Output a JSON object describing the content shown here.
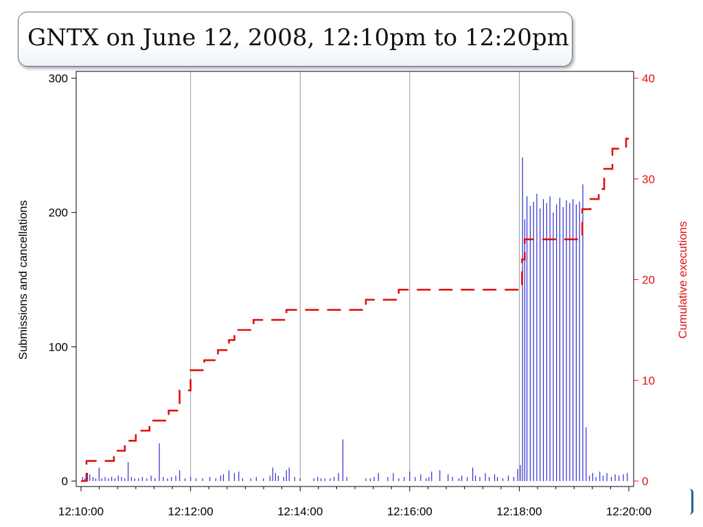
{
  "slide": {
    "title": "GNTX on June 12, 2008, 12:10pm to 12:20pm"
  },
  "colors": {
    "bars": "#2b2bcf",
    "cumulative": "#e01010",
    "grid": "#9a9a9a",
    "axis": "#000000"
  },
  "chart_data": {
    "type": "bar",
    "title": "",
    "x_axis": {
      "range": [
        "12:10:00",
        "12:20:00"
      ],
      "range_minutes": [
        0,
        10
      ],
      "tick_labels": [
        "12:10:00",
        "12:12:00",
        "12:14:00",
        "12:16:00",
        "12:18:00",
        "12:20:00"
      ],
      "tick_minutes": [
        0,
        2,
        4,
        6,
        8,
        10
      ],
      "grid": "vertical lines at labeled ticks"
    },
    "left_axis": {
      "label": "Submissions and cancellations",
      "range": [
        0,
        300
      ],
      "ticks": [
        "0",
        "100",
        "200",
        "300"
      ]
    },
    "right_axis": {
      "label": "Cumulative executions",
      "range": [
        0,
        40
      ],
      "ticks": [
        "0",
        "10",
        "20",
        "30",
        "40"
      ],
      "color": "#e01010"
    },
    "series": [
      {
        "type": "bar",
        "axis": "left",
        "note_minutes": "x in minutes after 12:10:00",
        "points": [
          [
            0.03,
            3
          ],
          [
            0.07,
            2
          ],
          [
            0.12,
            6
          ],
          [
            0.16,
            5
          ],
          [
            0.22,
            3
          ],
          [
            0.27,
            2
          ],
          [
            0.33,
            10
          ],
          [
            0.38,
            2
          ],
          [
            0.44,
            3
          ],
          [
            0.5,
            2
          ],
          [
            0.56,
            3
          ],
          [
            0.62,
            2
          ],
          [
            0.68,
            4
          ],
          [
            0.74,
            3
          ],
          [
            0.8,
            2
          ],
          [
            0.86,
            14
          ],
          [
            0.92,
            3
          ],
          [
            0.98,
            2
          ],
          [
            1.05,
            2
          ],
          [
            1.12,
            3
          ],
          [
            1.2,
            2
          ],
          [
            1.28,
            4
          ],
          [
            1.35,
            2
          ],
          [
            1.43,
            28
          ],
          [
            1.5,
            3
          ],
          [
            1.58,
            2
          ],
          [
            1.65,
            3
          ],
          [
            1.73,
            4
          ],
          [
            1.8,
            8
          ],
          [
            1.9,
            2
          ],
          [
            2.0,
            3
          ],
          [
            2.1,
            2
          ],
          [
            2.22,
            2
          ],
          [
            2.35,
            3
          ],
          [
            2.46,
            2
          ],
          [
            2.55,
            4
          ],
          [
            2.6,
            5
          ],
          [
            2.7,
            8
          ],
          [
            2.8,
            6
          ],
          [
            2.88,
            7
          ],
          [
            2.95,
            2
          ],
          [
            3.1,
            2
          ],
          [
            3.2,
            3
          ],
          [
            3.33,
            2
          ],
          [
            3.45,
            4
          ],
          [
            3.5,
            10
          ],
          [
            3.55,
            6
          ],
          [
            3.6,
            4
          ],
          [
            3.7,
            3
          ],
          [
            3.75,
            8
          ],
          [
            3.8,
            10
          ],
          [
            3.9,
            3
          ],
          [
            4.0,
            2
          ],
          [
            4.25,
            2
          ],
          [
            4.32,
            3
          ],
          [
            4.38,
            2
          ],
          [
            4.45,
            2
          ],
          [
            4.55,
            2
          ],
          [
            4.62,
            3
          ],
          [
            4.7,
            6
          ],
          [
            4.78,
            31
          ],
          [
            4.85,
            3
          ],
          [
            5.2,
            2
          ],
          [
            5.28,
            2
          ],
          [
            5.35,
            3
          ],
          [
            5.43,
            6
          ],
          [
            5.6,
            3
          ],
          [
            5.7,
            6
          ],
          [
            5.8,
            2
          ],
          [
            5.9,
            3
          ],
          [
            6.0,
            7
          ],
          [
            6.1,
            3
          ],
          [
            6.2,
            5
          ],
          [
            6.3,
            2
          ],
          [
            6.35,
            3
          ],
          [
            6.4,
            7
          ],
          [
            6.55,
            8
          ],
          [
            6.7,
            5
          ],
          [
            6.78,
            3
          ],
          [
            6.9,
            2
          ],
          [
            6.95,
            4
          ],
          [
            7.05,
            3
          ],
          [
            7.15,
            10
          ],
          [
            7.2,
            4
          ],
          [
            7.28,
            3
          ],
          [
            7.38,
            6
          ],
          [
            7.45,
            3
          ],
          [
            7.55,
            5
          ],
          [
            7.6,
            3
          ],
          [
            7.7,
            2
          ],
          [
            7.8,
            4
          ],
          [
            7.9,
            3
          ],
          [
            7.97,
            9
          ],
          [
            8.02,
            12
          ],
          [
            8.06,
            241
          ],
          [
            8.1,
            195
          ],
          [
            8.14,
            212
          ],
          [
            8.2,
            205
          ],
          [
            8.26,
            208
          ],
          [
            8.32,
            214
          ],
          [
            8.38,
            203
          ],
          [
            8.44,
            210
          ],
          [
            8.5,
            207
          ],
          [
            8.56,
            212
          ],
          [
            8.62,
            200
          ],
          [
            8.68,
            206
          ],
          [
            8.74,
            211
          ],
          [
            8.8,
            204
          ],
          [
            8.86,
            209
          ],
          [
            8.92,
            207
          ],
          [
            8.98,
            210
          ],
          [
            9.04,
            206
          ],
          [
            9.1,
            208
          ],
          [
            9.16,
            221
          ],
          [
            9.22,
            40
          ],
          [
            9.28,
            4
          ],
          [
            9.34,
            6
          ],
          [
            9.4,
            3
          ],
          [
            9.47,
            7
          ],
          [
            9.53,
            4
          ],
          [
            9.6,
            6
          ],
          [
            9.68,
            3
          ],
          [
            9.75,
            5
          ],
          [
            9.82,
            4
          ],
          [
            9.9,
            5
          ],
          [
            9.97,
            6
          ]
        ]
      },
      {
        "type": "step",
        "axis": "right",
        "style": "dashed",
        "name": "",
        "x_minutes": [
          0.0,
          0.1,
          0.6,
          0.8,
          1.0,
          1.25,
          1.6,
          1.8,
          2.0,
          2.25,
          2.5,
          2.7,
          2.8,
          3.15,
          3.75,
          5.2,
          5.8,
          8.05,
          8.1,
          9.15,
          9.3,
          9.45,
          9.55,
          9.7,
          9.95,
          10.0
        ],
        "cumulative": [
          0,
          2,
          3,
          4,
          5,
          6,
          7,
          9,
          11,
          12,
          13,
          14,
          15,
          16,
          17,
          18,
          19,
          22,
          24,
          27,
          28,
          29,
          31,
          33,
          34,
          34
        ]
      }
    ]
  }
}
